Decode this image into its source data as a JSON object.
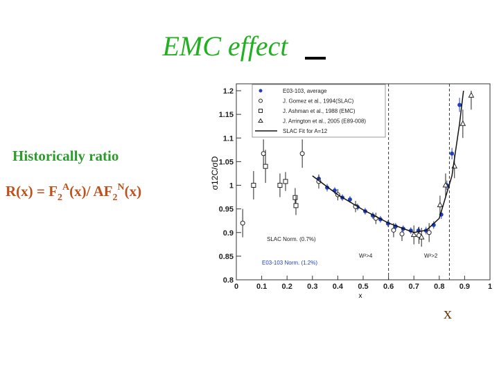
{
  "title": "EMC effect",
  "subtitle": "Historically  ratio",
  "formula": [
    "R(x)  =  F",
    "2",
    "A",
    "(x)/ AF",
    "2",
    "N",
    "(x)"
  ],
  "x_caption": "x",
  "chart_data": {
    "type": "scatter",
    "xlabel": "x",
    "ylabel": "σ12C/σD",
    "xlim": [
      0,
      1
    ],
    "xticks": [
      0,
      0.1,
      0.2,
      0.3,
      0.4,
      0.5,
      0.6,
      0.7,
      0.8,
      0.9,
      1
    ],
    "ylim": [
      0.8,
      1.2
    ],
    "yticks": [
      0.8,
      0.85,
      0.9,
      0.95,
      1,
      1.05,
      1.1,
      1.15,
      1.2
    ],
    "vlines": [
      0.6,
      0.84
    ],
    "annotations": [
      "SLAC Norm. (0.7%)",
      "E03-103 Norm. (1.2%)",
      "W²>4",
      "W²>2"
    ],
    "series": [
      {
        "name": "E03-103, average",
        "color": "#1f3fbf",
        "marker": "circle-filled",
        "x": [
          0.325,
          0.358,
          0.388,
          0.418,
          0.448,
          0.478,
          0.508,
          0.538,
          0.568,
          0.598,
          0.628,
          0.658,
          0.688,
          0.718,
          0.748,
          0.778,
          0.808,
          0.83,
          0.85,
          0.88
        ],
        "values": [
          1.014,
          0.995,
          0.989,
          0.974,
          0.97,
          0.954,
          0.945,
          0.936,
          0.928,
          0.919,
          0.913,
          0.908,
          0.904,
          0.904,
          0.904,
          0.916,
          0.938,
          1.0,
          1.067,
          1.17
        ],
        "errors": [
          0.008,
          0.008,
          0.007,
          0.007,
          0.007,
          0.007,
          0.007,
          0.007,
          0.007,
          0.007,
          0.007,
          0.007,
          0.007,
          0.007,
          0.008,
          0.008,
          0.009,
          0.01,
          0.012,
          0.015
        ]
      },
      {
        "name": "J. Gomez et al., 1994(SLAC)",
        "color": "#222",
        "marker": "circle-open",
        "x": [
          0.025,
          0.107,
          0.26,
          0.325,
          0.4,
          0.47,
          0.55,
          0.62,
          0.653,
          0.72,
          0.76
        ],
        "values": [
          0.92,
          1.067,
          1.067,
          1.008,
          0.98,
          0.955,
          0.93,
          0.905,
          0.897,
          0.894,
          0.9
        ],
        "errors": [
          0.03,
          0.03,
          0.03,
          0.015,
          0.012,
          0.012,
          0.012,
          0.015,
          0.015,
          0.018,
          0.02
        ]
      },
      {
        "name": "J. Ashman et al., 1988 (EMC)",
        "color": "#222",
        "marker": "square-open",
        "x": [
          0.068,
          0.115,
          0.172,
          0.194,
          0.232,
          0.235
        ],
        "values": [
          1.0,
          1.04,
          1.0,
          1.008,
          0.974,
          0.957
        ],
        "errors": [
          0.03,
          0.035,
          0.025,
          0.02,
          0.02,
          0.02
        ]
      },
      {
        "name": "J. Arrington et al., 2005 (E89-008)",
        "color": "#222",
        "marker": "triangle-open",
        "x": [
          0.7,
          0.73,
          0.803,
          0.825,
          0.86,
          0.893,
          0.926
        ],
        "values": [
          0.895,
          0.89,
          0.958,
          1.0,
          1.04,
          1.13,
          1.19
        ],
        "errors": [
          0.02,
          0.02,
          0.02,
          0.025,
          0.025,
          0.03,
          0.03
        ]
      },
      {
        "name": "SLAC Fit for A=12",
        "color": "#111",
        "marker": "line",
        "x": [
          0.3,
          0.4,
          0.5,
          0.6,
          0.7,
          0.75,
          0.8,
          0.85,
          0.88,
          0.9
        ],
        "values": [
          1.02,
          0.98,
          0.948,
          0.92,
          0.9,
          0.905,
          0.93,
          1.02,
          1.13,
          1.22
        ]
      }
    ]
  }
}
